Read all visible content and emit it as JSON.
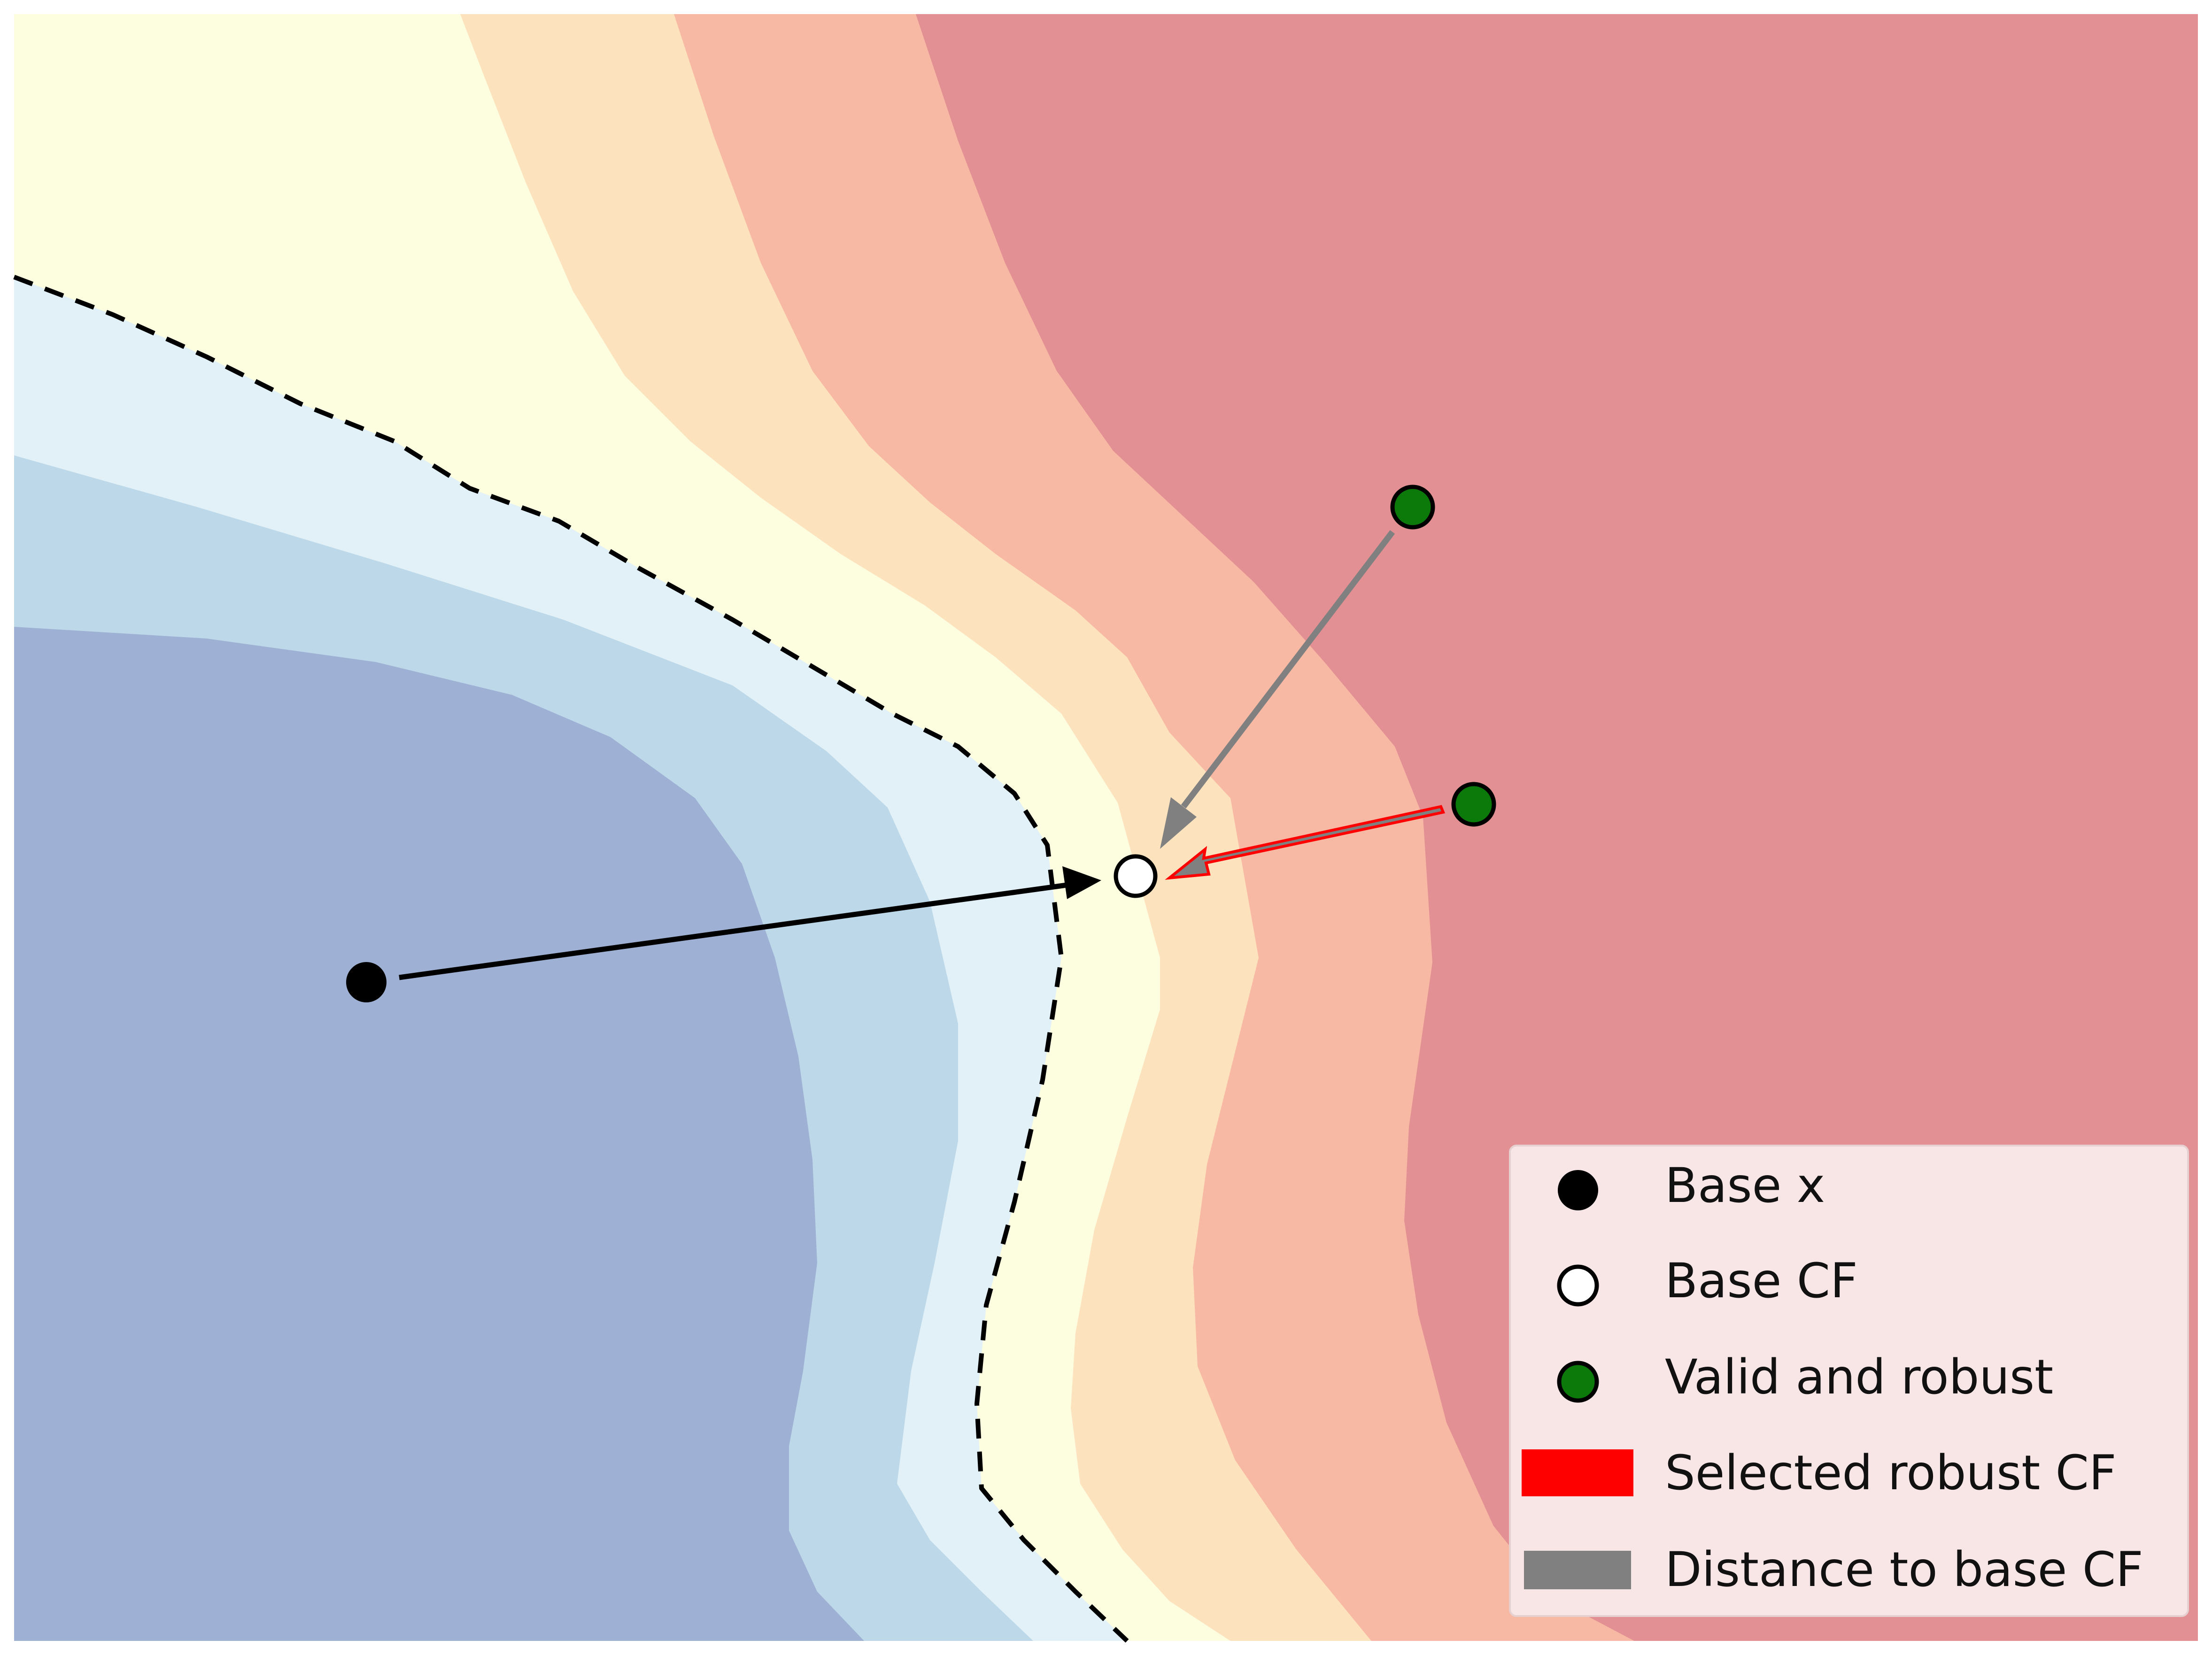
{
  "diagram": {
    "regions": [
      {
        "name": "band-1",
        "color": "#9eb0d3"
      },
      {
        "name": "band-2",
        "color": "#bdd8e8"
      },
      {
        "name": "band-3",
        "color": "#e1f1f7"
      },
      {
        "name": "band-4",
        "color": "#fdfde0"
      },
      {
        "name": "band-5",
        "color": "#fce2bd"
      },
      {
        "name": "band-6",
        "color": "#f8b9a4"
      },
      {
        "name": "band-7",
        "color": "#e29093"
      }
    ],
    "boundary": {
      "style": "dashed",
      "color": "#000000"
    },
    "points": {
      "base_x": {
        "fill": "#000000"
      },
      "base_cf": {
        "fill": "#ffffff"
      },
      "valid_robust": {
        "fill": "#0b7a0b"
      }
    },
    "arrows": {
      "base": {
        "color": "#000000"
      },
      "distance": {
        "color": "#808080"
      },
      "selected": {
        "color": "#ff0000"
      }
    }
  },
  "legend": {
    "background": "#f8e6e6",
    "items": [
      {
        "marker": "filled-circle",
        "label": "Base x"
      },
      {
        "marker": "hollow-circle",
        "label": "Base CF"
      },
      {
        "marker": "green-circle",
        "label": "Valid and robust"
      },
      {
        "marker": "red-patch",
        "label": "Selected robust CF"
      },
      {
        "marker": "gray-patch",
        "label": "Distance to base CF"
      }
    ]
  }
}
